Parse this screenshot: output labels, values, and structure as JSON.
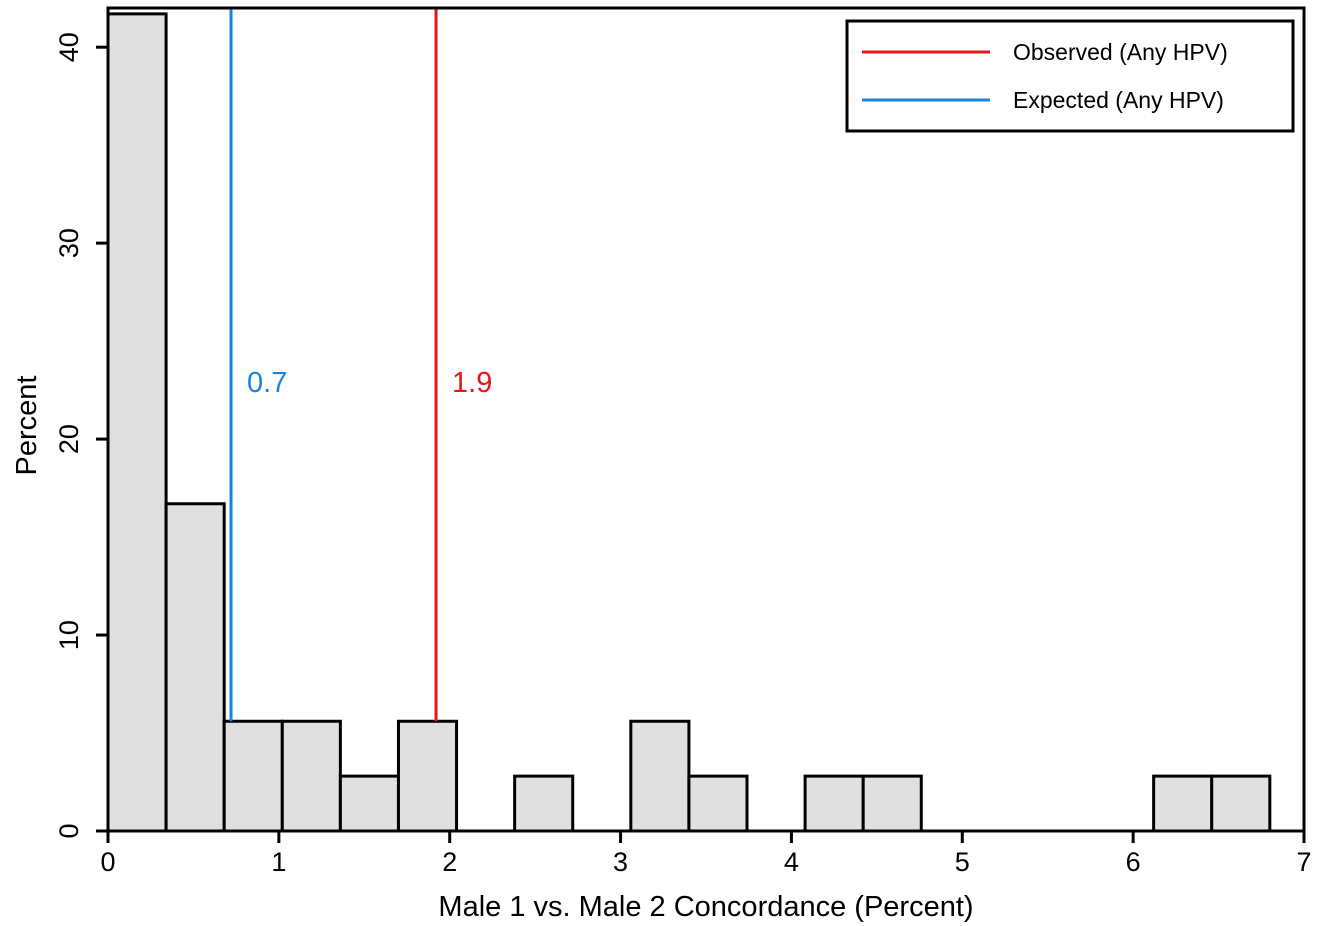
{
  "chart_data": {
    "type": "bar",
    "subtype": "histogram",
    "title": "",
    "xlabel": "Male 1 vs. Male 2 Concordance (Percent)",
    "ylabel": "Percent",
    "xlim": [
      0,
      7
    ],
    "ylim": [
      0,
      42
    ],
    "xticks": [
      0,
      1,
      2,
      3,
      4,
      5,
      6,
      7
    ],
    "yticks": [
      0,
      10,
      20,
      30,
      40
    ],
    "bin_width": 0.34,
    "bars": [
      {
        "x0": 0.0,
        "x1": 0.34,
        "value": 41.7
      },
      {
        "x0": 0.34,
        "x1": 0.68,
        "value": 16.7
      },
      {
        "x0": 0.68,
        "x1": 1.02,
        "value": 5.6
      },
      {
        "x0": 1.02,
        "x1": 1.36,
        "value": 5.6
      },
      {
        "x0": 1.36,
        "x1": 1.7,
        "value": 2.8
      },
      {
        "x0": 1.7,
        "x1": 2.04,
        "value": 5.6
      },
      {
        "x0": 2.04,
        "x1": 2.38,
        "value": 0
      },
      {
        "x0": 2.38,
        "x1": 2.72,
        "value": 2.8
      },
      {
        "x0": 2.72,
        "x1": 3.06,
        "value": 0
      },
      {
        "x0": 3.06,
        "x1": 3.4,
        "value": 5.6
      },
      {
        "x0": 3.4,
        "x1": 3.74,
        "value": 2.8
      },
      {
        "x0": 3.74,
        "x1": 4.08,
        "value": 0
      },
      {
        "x0": 4.08,
        "x1": 4.42,
        "value": 2.8
      },
      {
        "x0": 4.42,
        "x1": 4.76,
        "value": 2.8
      },
      {
        "x0": 4.76,
        "x1": 5.1,
        "value": 0
      },
      {
        "x0": 5.1,
        "x1": 5.44,
        "value": 0
      },
      {
        "x0": 5.44,
        "x1": 5.78,
        "value": 0
      },
      {
        "x0": 5.78,
        "x1": 6.12,
        "value": 0
      },
      {
        "x0": 6.12,
        "x1": 6.46,
        "value": 2.8
      },
      {
        "x0": 6.46,
        "x1": 6.8,
        "value": 2.8
      }
    ],
    "reference_lines": [
      {
        "name": "Observed (Any HPV)",
        "x": 1.92,
        "label": "1.9",
        "color": "#e8141a"
      },
      {
        "name": "Expected (Any HPV)",
        "x": 0.72,
        "label": "0.7",
        "color": "#1a83e0"
      }
    ],
    "legend": {
      "position": "top-right",
      "entries": [
        {
          "label": "Observed (Any HPV)",
          "color": "#e8141a"
        },
        {
          "label": "Expected (Any HPV)",
          "color": "#1a83e0"
        }
      ]
    },
    "bar_fill": "#e0e0e0",
    "bar_stroke": "#000000",
    "grid": false
  }
}
